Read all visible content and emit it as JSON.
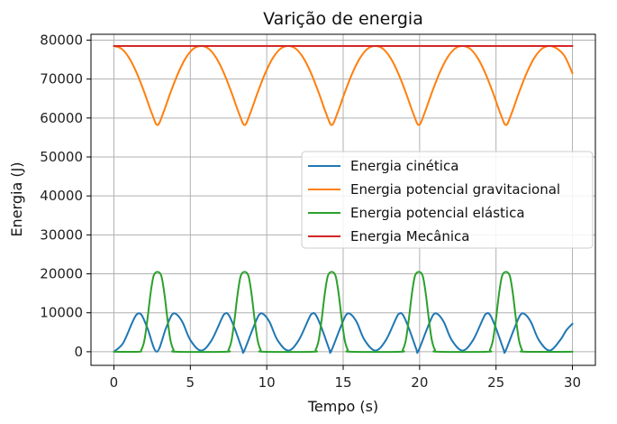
{
  "chart_data": {
    "type": "line",
    "title": "Varição de energia",
    "xlabel": "Tempo (s)",
    "ylabel": "Energia (J)",
    "xlim": [
      -1.5,
      31.5
    ],
    "ylim": [
      -3500,
      81500
    ],
    "xticks": [
      0,
      5,
      10,
      15,
      20,
      25,
      30
    ],
    "yticks": [
      0,
      10000,
      20000,
      30000,
      40000,
      50000,
      60000,
      70000,
      80000
    ],
    "xtick_labels": [
      "0",
      "5",
      "10",
      "15",
      "20",
      "25",
      "30"
    ],
    "ytick_labels": [
      "0",
      "10000",
      "20000",
      "30000",
      "40000",
      "50000",
      "60000",
      "70000",
      "80000"
    ],
    "grid": true,
    "legend_position": "center-right",
    "series": [
      {
        "name": "Energia cinética",
        "color": "#1f77b4",
        "x": [
          0.0,
          0.6,
          1.2,
          1.5,
          1.8,
          2.2,
          2.8,
          3.4,
          3.8,
          4.1,
          4.5,
          5.0,
          5.7,
          6.4,
          7.2,
          7.5,
          7.9,
          8.4,
          8.5,
          9.1,
          9.5,
          9.8,
          10.2,
          10.7,
          11.4,
          12.1,
          12.9,
          13.2,
          13.6,
          14.1,
          14.2,
          14.8,
          15.2,
          15.5,
          15.9,
          16.4,
          17.1,
          17.8,
          18.6,
          18.9,
          19.3,
          19.8,
          19.9,
          20.5,
          20.9,
          21.2,
          21.6,
          22.1,
          22.8,
          23.5,
          24.3,
          24.6,
          25.0,
          25.5,
          25.6,
          26.2,
          26.6,
          26.9,
          27.3,
          27.8,
          28.5,
          29.2,
          29.6,
          30.0
        ],
        "y": [
          0,
          2200,
          7500,
          9600,
          9500,
          6000,
          0,
          6000,
          9500,
          9600,
          7500,
          3000,
          300,
          3000,
          9600,
          9500,
          6000,
          500,
          0,
          6000,
          9500,
          9600,
          7500,
          3000,
          300,
          3000,
          9600,
          9500,
          6000,
          500,
          0,
          6000,
          9500,
          9600,
          7500,
          3000,
          300,
          3000,
          9600,
          9500,
          6000,
          500,
          0,
          6000,
          9500,
          9600,
          7500,
          3000,
          300,
          3000,
          9600,
          9500,
          6000,
          500,
          0,
          6000,
          9500,
          9600,
          7500,
          3000,
          300,
          3000,
          5500,
          7200
        ]
      },
      {
        "name": "Energia potencial gravitacional",
        "color": "#ff7f0e",
        "x": [
          0.0,
          0.5,
          1.0,
          1.5,
          2.0,
          2.5,
          2.85,
          3.2,
          3.7,
          4.2,
          4.7,
          5.2,
          5.7,
          6.2,
          6.7,
          7.2,
          7.7,
          8.2,
          8.55,
          8.9,
          9.4,
          9.9,
          10.4,
          10.9,
          11.4,
          11.9,
          12.4,
          12.9,
          13.4,
          13.9,
          14.25,
          14.6,
          15.1,
          15.6,
          16.1,
          16.6,
          17.1,
          17.6,
          18.1,
          18.6,
          19.1,
          19.6,
          19.95,
          20.3,
          20.8,
          21.3,
          21.8,
          22.3,
          22.8,
          23.3,
          23.8,
          24.3,
          24.8,
          25.3,
          25.65,
          26.0,
          26.5,
          27.0,
          27.5,
          28.0,
          28.5,
          29.0,
          29.5,
          30.0
        ],
        "y": [
          78500,
          77800,
          75400,
          71500,
          66500,
          61000,
          58200,
          61000,
          66500,
          71500,
          75400,
          77800,
          78500,
          77800,
          75400,
          71500,
          66500,
          61000,
          58200,
          61000,
          66500,
          71500,
          75400,
          77800,
          78500,
          77800,
          75400,
          71500,
          66500,
          61000,
          58200,
          61000,
          66500,
          71500,
          75400,
          77800,
          78500,
          77800,
          75400,
          71500,
          66500,
          61000,
          58200,
          61000,
          66500,
          71500,
          75400,
          77800,
          78500,
          77800,
          75400,
          71500,
          66500,
          61000,
          58200,
          61000,
          66500,
          71500,
          75400,
          77800,
          78500,
          77800,
          75800,
          71500
        ]
      },
      {
        "name": "Energia potencial elástica",
        "color": "#2ca02c",
        "x": [
          0.0,
          1.6,
          1.8,
          2.0,
          2.2,
          2.4,
          2.6,
          2.85,
          3.1,
          3.3,
          3.5,
          3.7,
          3.9,
          4.1,
          7.3,
          7.5,
          7.7,
          7.9,
          8.1,
          8.3,
          8.55,
          8.8,
          9.0,
          9.2,
          9.4,
          9.6,
          9.8,
          13.0,
          13.2,
          13.4,
          13.6,
          13.8,
          14.0,
          14.25,
          14.5,
          14.7,
          14.9,
          15.1,
          15.3,
          15.5,
          18.7,
          18.9,
          19.1,
          19.3,
          19.5,
          19.7,
          19.95,
          20.2,
          20.4,
          20.6,
          20.8,
          21.0,
          21.2,
          24.4,
          24.6,
          24.8,
          25.0,
          25.2,
          25.4,
          25.65,
          25.9,
          26.1,
          26.3,
          26.5,
          26.7,
          26.9,
          30.0
        ],
        "y": [
          0,
          0,
          500,
          3000,
          8500,
          15000,
          19500,
          20500,
          19500,
          15000,
          8500,
          3000,
          500,
          0,
          0,
          500,
          3000,
          8500,
          15000,
          19500,
          20500,
          19500,
          15000,
          8500,
          3000,
          500,
          0,
          0,
          500,
          3000,
          8500,
          15000,
          19500,
          20500,
          19500,
          15000,
          8500,
          3000,
          500,
          0,
          0,
          500,
          3000,
          8500,
          15000,
          19500,
          20500,
          19500,
          15000,
          8500,
          3000,
          500,
          0,
          0,
          500,
          3000,
          8500,
          15000,
          19500,
          20500,
          19500,
          15000,
          8500,
          3000,
          500,
          0,
          0
        ]
      },
      {
        "name": "Energia Mecânica",
        "color": "#d62728",
        "x": [
          0.0,
          30.0
        ],
        "y": [
          78500,
          78500
        ]
      }
    ]
  }
}
